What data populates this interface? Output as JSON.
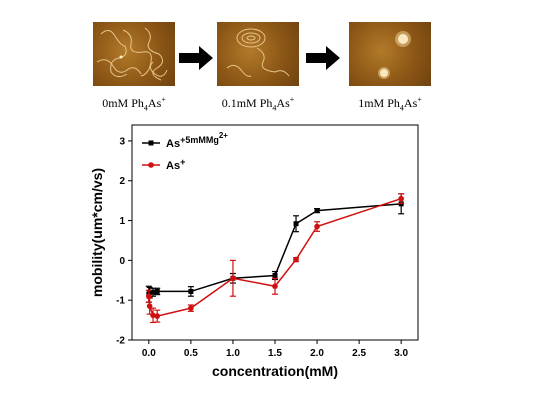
{
  "panels": [
    {
      "label": "0mM Ph",
      "sub": "4",
      "label2": "As",
      "sup": "+"
    },
    {
      "label": "0.1mM Ph",
      "sub": "4",
      "label2": "As",
      "sup": "+"
    },
    {
      "label": "1mM Ph",
      "sub": "4",
      "label2": "As",
      "sup": "+"
    }
  ],
  "chart_data": {
    "type": "line",
    "title": "",
    "xlabel": "concentration(mM)",
    "ylabel": "mobility(um*cm/vs)",
    "xlim": [
      -0.2,
      3.2
    ],
    "ylim": [
      -2,
      3.4
    ],
    "xticks": [
      "0.0",
      "0.5",
      "1.0",
      "1.5",
      "2.0",
      "2.5",
      "3.0"
    ],
    "xtick_values": [
      0,
      0.5,
      1.0,
      1.5,
      2.0,
      2.5,
      3.0
    ],
    "yticks": [
      "-2",
      "-1",
      "0",
      "1",
      "2",
      "3"
    ],
    "ytick_values": [
      -2,
      -1,
      0,
      1,
      2,
      3
    ],
    "legend_position": "top-left",
    "series": [
      {
        "name": "As",
        "name_sup": "+5mMMg",
        "name_sup2": "2+",
        "color": "#000000",
        "marker": "square",
        "x": [
          0,
          0.01,
          0.05,
          0.1,
          0.5,
          1.0,
          1.5,
          1.75,
          2.0,
          3.0
        ],
        "y": [
          -0.85,
          -0.8,
          -0.8,
          -0.78,
          -0.78,
          -0.45,
          -0.38,
          0.92,
          1.25,
          1.42
        ],
        "err": [
          0.2,
          0.12,
          0.1,
          0.08,
          0.12,
          0.12,
          0.1,
          0.2,
          0.05,
          0.25
        ]
      },
      {
        "name": "As",
        "name_sup": "+",
        "name_sup2": "",
        "color": "#d01010",
        "marker": "circle",
        "x": [
          0,
          0.01,
          0.05,
          0.1,
          0.5,
          1.0,
          1.5,
          1.75,
          2.0,
          3.0
        ],
        "y": [
          -0.9,
          -1.15,
          -1.38,
          -1.4,
          -1.2,
          -0.45,
          -0.65,
          0.02,
          0.85,
          1.55
        ],
        "err": [
          0.15,
          0.2,
          0.18,
          0.15,
          0.08,
          0.45,
          0.2,
          0.05,
          0.12,
          0.12
        ]
      }
    ]
  }
}
